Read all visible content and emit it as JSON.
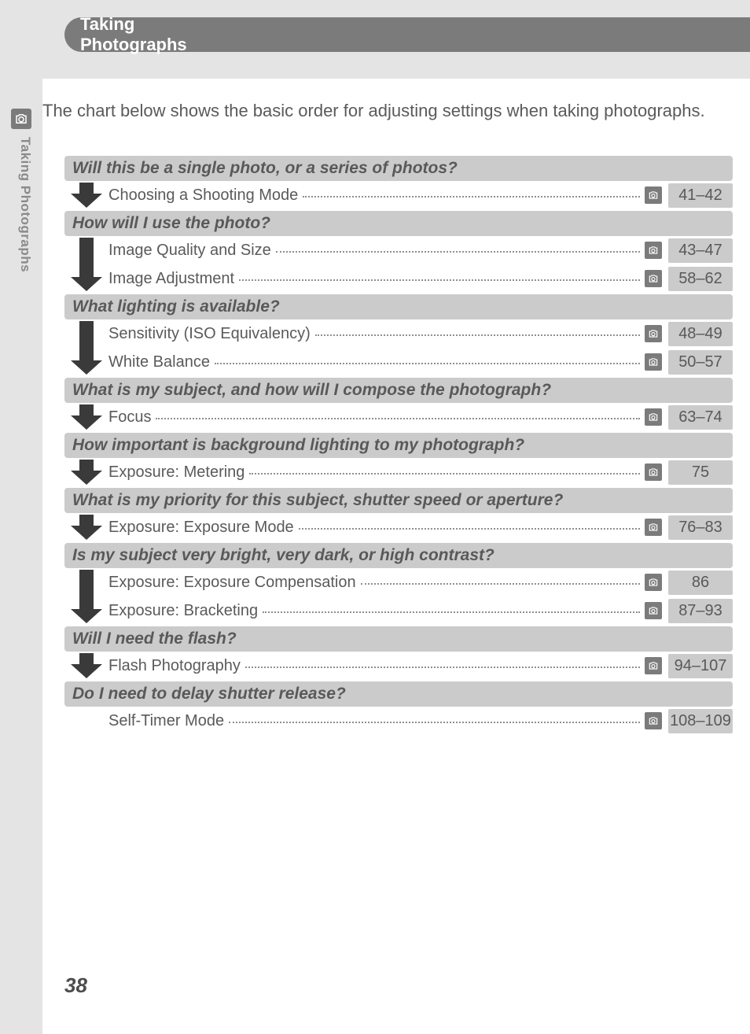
{
  "colors": {
    "band_gray": "#e4e4e4",
    "pill_gray": "#7b7b7b",
    "cell_gray": "#cbcbcb",
    "text_gray": "#5a5a5a",
    "heading_gray": "#595959",
    "tab_text_gray": "#8a8a8a"
  },
  "chapter_title": "Taking Photographs",
  "tab_label": "Taking Photographs",
  "intro_text": "The chart below shows the basic order for adjusting settings when taking photographs.",
  "page_number": "38",
  "ref_icon_name": "page-ref-icon",
  "sections": [
    {
      "question": "Will this be a single photo, or a series of photos?",
      "items": [
        {
          "label": "Choosing a Shooting Mode",
          "pages": "41–42"
        }
      ]
    },
    {
      "question": "How will I use the photo?",
      "items": [
        {
          "label": "Image Quality and Size",
          "pages": "43–47"
        },
        {
          "label": "Image Adjustment",
          "pages": "58–62"
        }
      ]
    },
    {
      "question": "What lighting is available?",
      "items": [
        {
          "label": "Sensitivity (ISO Equivalency)",
          "pages": "48–49"
        },
        {
          "label": "White Balance",
          "pages": "50–57"
        }
      ]
    },
    {
      "question": "What is my subject, and how will I compose the photograph?",
      "items": [
        {
          "label": "Focus",
          "pages": "63–74"
        }
      ]
    },
    {
      "question": "How important is background lighting to my photograph?",
      "items": [
        {
          "label": "Exposure: Metering",
          "pages": "75"
        }
      ]
    },
    {
      "question": "What is my priority for this subject, shutter speed or aperture?",
      "items": [
        {
          "label": "Exposure: Exposure Mode",
          "pages": "76–83"
        }
      ]
    },
    {
      "question": "Is my subject very bright, very dark, or high contrast?",
      "items": [
        {
          "label": "Exposure: Exposure Compensation",
          "pages": "86"
        },
        {
          "label": "Exposure: Bracketing",
          "pages": "87–93"
        }
      ]
    },
    {
      "question": "Will I need the flash?",
      "items": [
        {
          "label": "Flash Photography",
          "pages": "94–107"
        }
      ]
    },
    {
      "question": "Do I need to delay shutter release?",
      "items": [
        {
          "label": "Self-Timer Mode",
          "pages": "108–109"
        }
      ]
    }
  ]
}
